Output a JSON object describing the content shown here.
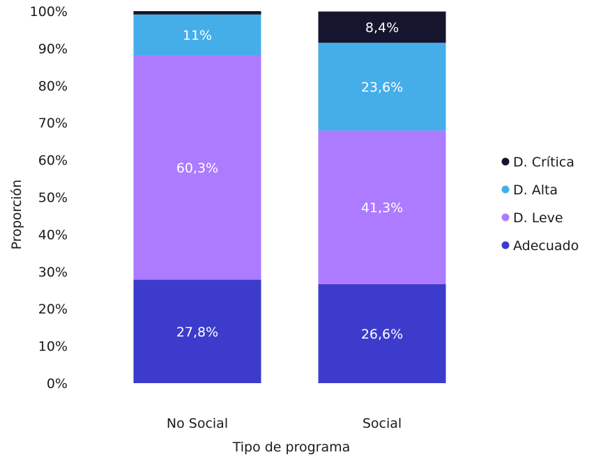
{
  "chart_data": {
    "type": "bar",
    "stacked": true,
    "categories": [
      "No Social",
      "Social"
    ],
    "series": [
      {
        "name": "Adecuado",
        "color": "#3d3bcc",
        "values": [
          27.8,
          26.6
        ],
        "labels": [
          "27,8%",
          "26,6%"
        ]
      },
      {
        "name": "D. Leve",
        "color": "#ad7bff",
        "values": [
          60.3,
          41.3
        ],
        "labels": [
          "60,3%",
          "41,3%"
        ]
      },
      {
        "name": "D. Alta",
        "color": "#45aee8",
        "values": [
          11.0,
          23.6
        ],
        "labels": [
          "11%",
          "23,6%"
        ]
      },
      {
        "name": "D. Crítica",
        "color": "#15152e",
        "values": [
          0.9,
          8.4
        ],
        "labels": [
          "",
          "8,4%"
        ]
      }
    ],
    "xlabel": "Tipo de programa",
    "ylabel": "Proporción",
    "ylim": [
      0,
      100
    ],
    "yticks": [
      "0%",
      "10%",
      "20%",
      "30%",
      "40%",
      "50%",
      "60%",
      "70%",
      "80%",
      "90%",
      "100%"
    ],
    "legend": {
      "placement": "right",
      "order": [
        "D. Crítica",
        "D. Alta",
        "D. Leve",
        "Adecuado"
      ]
    },
    "grid": false
  }
}
